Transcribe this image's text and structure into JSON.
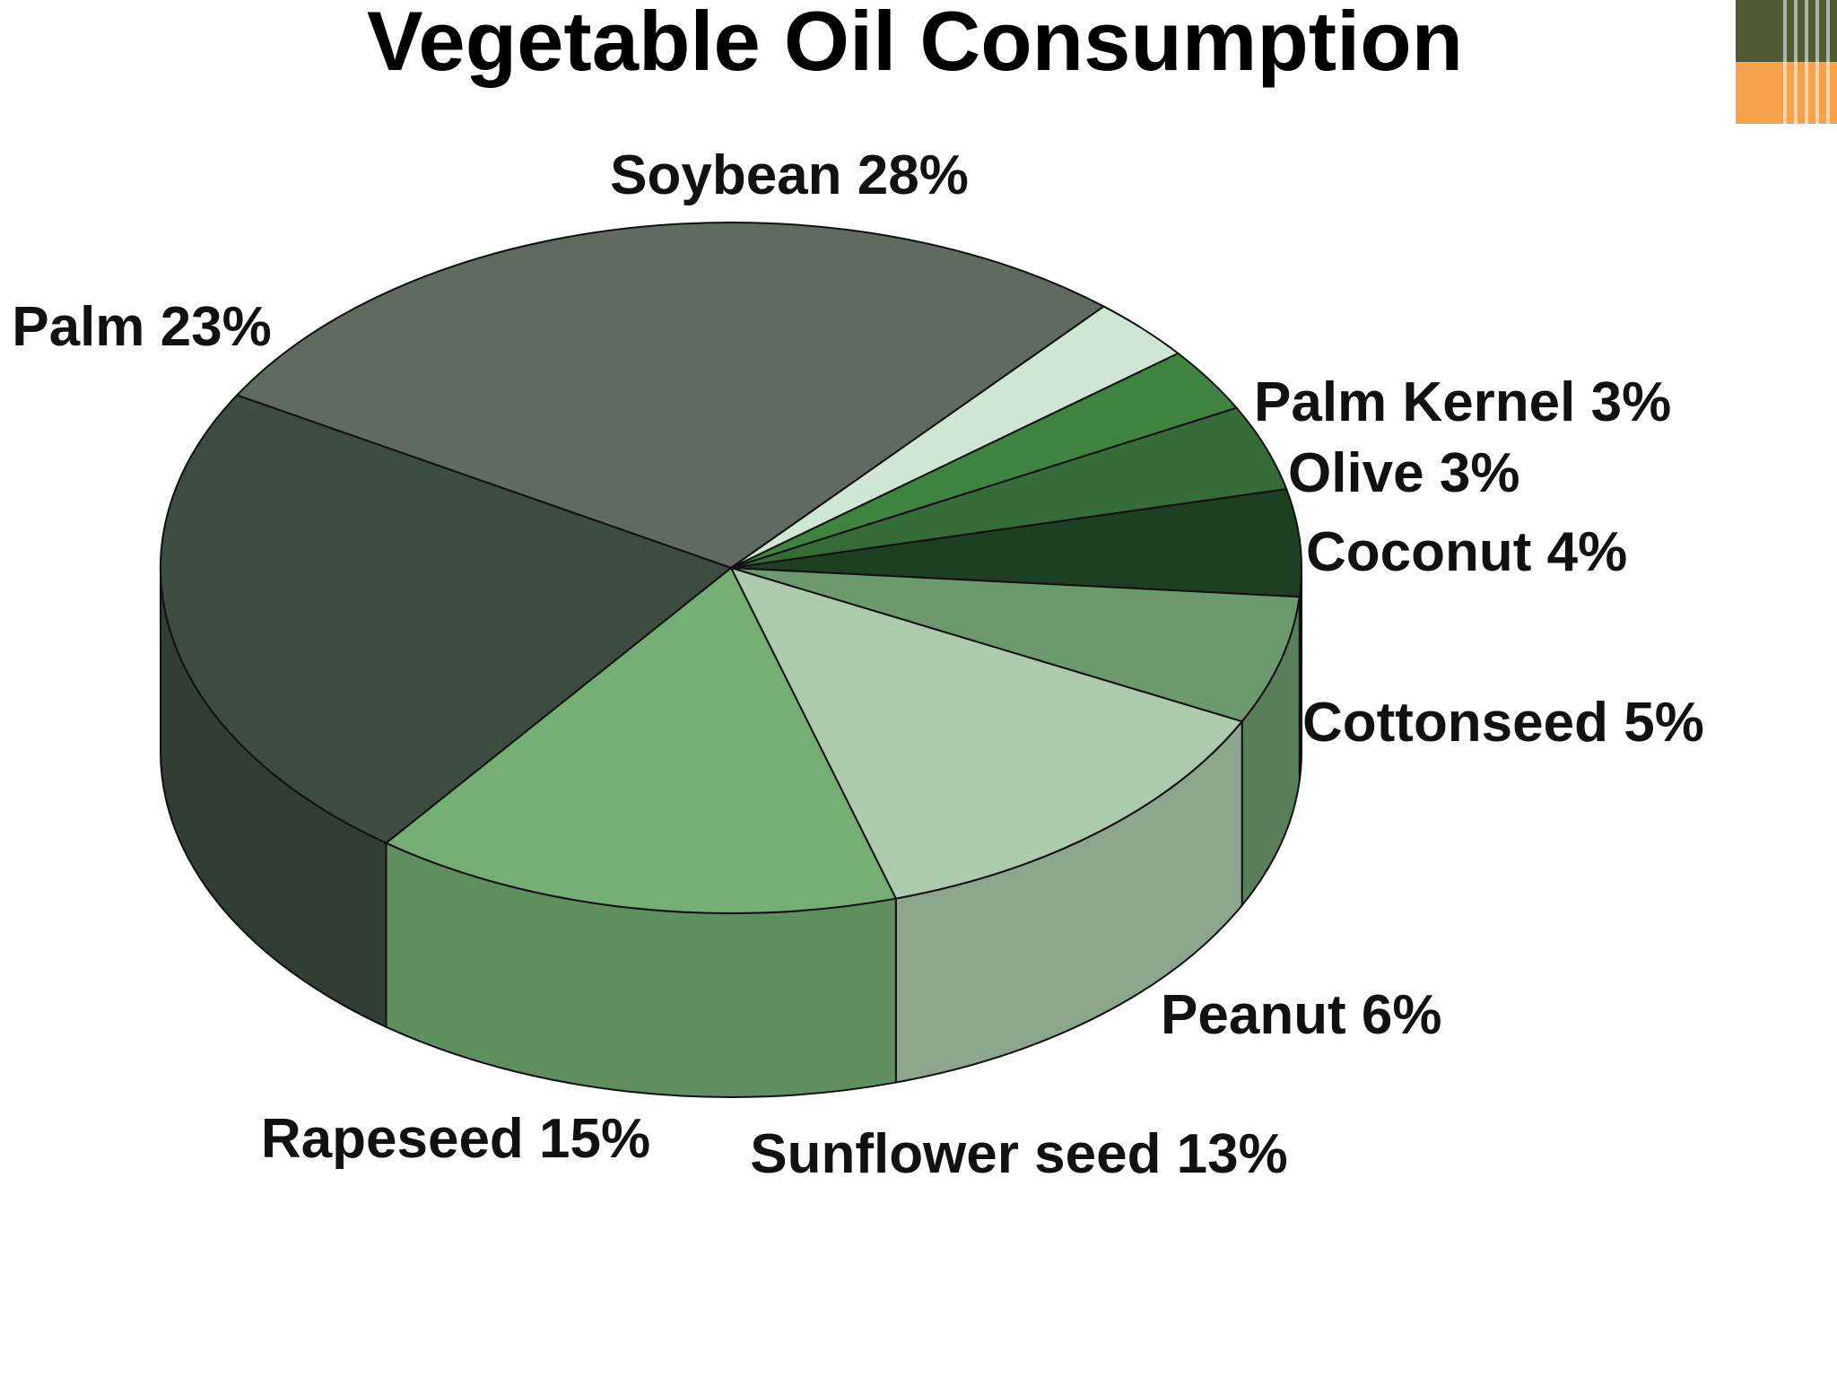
{
  "chart_data": {
    "type": "pie",
    "title": "Vegetable Oil Consumption",
    "slices": [
      {
        "label": "Soybean 28%",
        "name": "Soybean",
        "value": 28,
        "color": "#5e6b5e"
      },
      {
        "label": "Palm Kernel 3%",
        "name": "Palm Kernel",
        "value": 3,
        "color": "#cfe6d2"
      },
      {
        "label": "Olive 3%",
        "name": "Olive",
        "value": 3,
        "color": "#3f8340"
      },
      {
        "label": "Coconut 4%",
        "name": "Coconut",
        "value": 4,
        "color": "#356c37"
      },
      {
        "label": "Cottonseed 5%",
        "name": "Cottonseed",
        "value": 5,
        "color": "#1e3f22"
      },
      {
        "label": "Peanut 6%",
        "name": "Peanut",
        "value": 6,
        "color": "#6c9a6e"
      },
      {
        "label": "Sunflower seed 13%",
        "name": "Sunflower seed",
        "value": 13,
        "color": "#abcbac"
      },
      {
        "label": "Rapeseed 15%",
        "name": "Rapeseed",
        "value": 15,
        "color": "#74ae74"
      },
      {
        "label": "Palm 23%",
        "name": "Palm",
        "value": 23,
        "color": "#3c4c3f"
      }
    ]
  },
  "decoration": {
    "corner_colors": [
      "#4f5a35",
      "#f5a24a"
    ]
  }
}
